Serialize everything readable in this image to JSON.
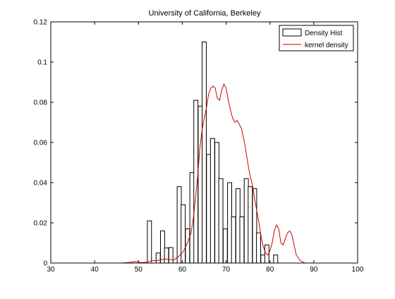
{
  "chart_data": {
    "type": "bar",
    "title": "University of California, Berkeley",
    "xlabel": "",
    "ylabel": "",
    "xlim": [
      30,
      100
    ],
    "ylim": [
      0,
      0.12
    ],
    "x_ticks": [
      30,
      40,
      50,
      60,
      70,
      80,
      90,
      100
    ],
    "y_ticks": [
      0,
      0.02,
      0.04,
      0.06,
      0.08,
      0.1,
      0.12
    ],
    "grid": false,
    "legend_position": "top-right",
    "legend": [
      "Density Hist",
      "kernel density"
    ],
    "colors": {
      "histogram_edge": "#000000",
      "histogram_fill": "#ffffff",
      "kde_line": "#cc0000",
      "axes": "#000000"
    },
    "series": [
      {
        "name": "Density Hist",
        "type": "bar",
        "bin_width": 0.95,
        "bin_centers": [
          52.5,
          53.5,
          54.5,
          55.5,
          56.4,
          57.4,
          58.3,
          59.3,
          60.2,
          61.2,
          62.2,
          63.1,
          64.1,
          65.0,
          66.0,
          66.9,
          67.9,
          68.8,
          69.8,
          70.8,
          71.7,
          72.7,
          73.6,
          74.6,
          75.5,
          76.5,
          77.4,
          78.4,
          79.3,
          80.3,
          81.3
        ],
        "values": [
          0.021,
          0.0,
          0.005,
          0.016,
          0.0075,
          0.0077,
          0.0,
          0.038,
          0.029,
          0.017,
          0.045,
          0.081,
          0.078,
          0.11,
          0.054,
          0.062,
          0.06,
          0.042,
          0.017,
          0.04,
          0.023,
          0.037,
          0.023,
          0.042,
          0.038,
          0.037,
          0.015,
          0.004,
          0.009,
          0.0,
          0.004
        ]
      },
      {
        "name": "kernel density",
        "type": "line",
        "x": [
          38,
          46,
          48,
          49.5,
          50.5,
          52,
          53,
          54,
          55,
          56,
          57,
          58,
          59,
          60,
          61,
          62,
          62.5,
          63,
          63.5,
          64,
          64.5,
          65,
          65.5,
          66,
          66.5,
          67,
          67.5,
          68,
          68.5,
          69,
          69.5,
          70,
          70.5,
          71,
          71.5,
          72,
          72.5,
          73,
          73.5,
          74,
          74.5,
          75,
          75.5,
          76,
          76.5,
          77,
          77.5,
          78,
          78.5,
          79,
          79.5,
          80,
          80.5,
          81,
          81.5,
          82,
          82.5,
          83,
          83.5,
          84,
          84.5,
          85,
          85.5,
          86,
          87,
          88,
          96
        ],
        "y": [
          0.0,
          0.0,
          0.0003,
          0.0008,
          0.0002,
          0.0004,
          0.0012,
          0.0012,
          0.0015,
          0.002,
          0.0018,
          0.0015,
          0.003,
          0.005,
          0.009,
          0.015,
          0.022,
          0.032,
          0.043,
          0.057,
          0.066,
          0.072,
          0.077,
          0.084,
          0.087,
          0.088,
          0.087,
          0.082,
          0.081,
          0.086,
          0.089,
          0.087,
          0.081,
          0.076,
          0.072,
          0.07,
          0.071,
          0.069,
          0.067,
          0.062,
          0.056,
          0.049,
          0.043,
          0.039,
          0.032,
          0.026,
          0.02,
          0.013,
          0.008,
          0.005,
          0.004,
          0.006,
          0.01,
          0.016,
          0.019,
          0.017,
          0.01,
          0.009,
          0.012,
          0.015,
          0.016,
          0.014,
          0.009,
          0.004,
          0.001,
          0.0,
          0.0
        ]
      }
    ]
  }
}
